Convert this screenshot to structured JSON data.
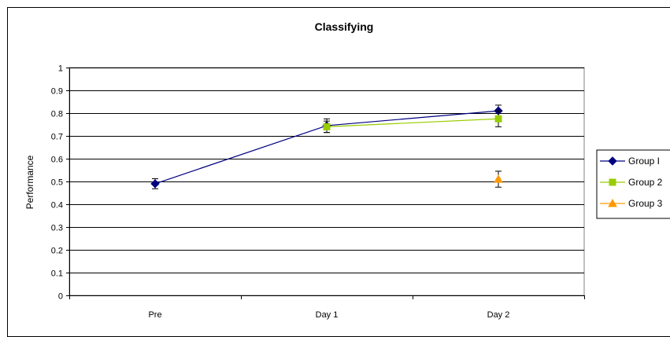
{
  "chart_data": {
    "type": "line",
    "title": "Classifying",
    "xlabel": "",
    "ylabel": "Performance",
    "categories": [
      "Pre",
      "Day 1",
      "Day 2"
    ],
    "ylim": [
      0,
      1
    ],
    "yticks": [
      "0",
      "0.1",
      "0.2",
      "0.3",
      "0.4",
      "0.5",
      "0.6",
      "0.7",
      "0.8",
      "0.9",
      "1"
    ],
    "grid": true,
    "legend_position": "right",
    "series": [
      {
        "name": "Group I",
        "color": "#000080",
        "marker": "diamond",
        "values": [
          0.49,
          0.745,
          0.81
        ],
        "errors": [
          0.022,
          0.03,
          0.025
        ]
      },
      {
        "name": "Group 2",
        "color": "#99cc00",
        "marker": "square",
        "values": [
          null,
          0.74,
          0.775
        ],
        "errors": [
          null,
          0.025,
          0.035
        ]
      },
      {
        "name": "Group 3",
        "color": "#ff9900",
        "marker": "triangle",
        "values": [
          null,
          null,
          0.51
        ],
        "errors": [
          null,
          null,
          0.035
        ]
      }
    ]
  }
}
